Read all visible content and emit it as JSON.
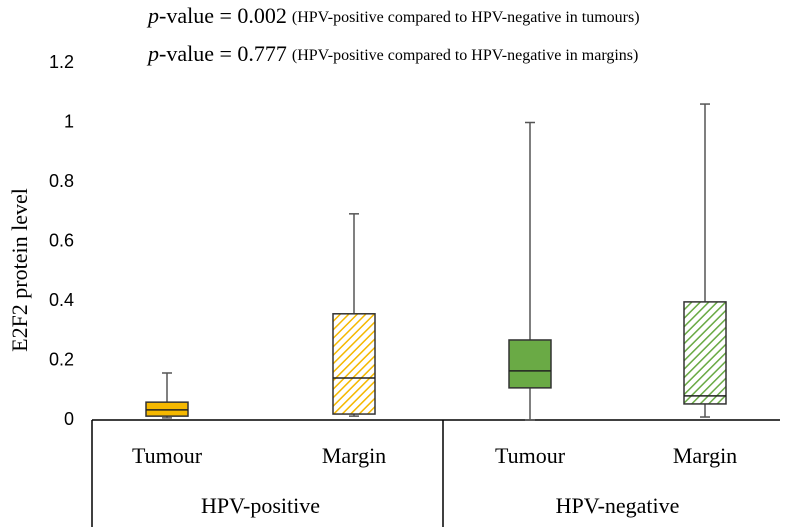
{
  "chart_data": {
    "type": "box",
    "annotations": [
      {
        "symbol": "p",
        "text": "-value = 0.002",
        "detail": "(HPV-positive compared to HPV-negative in tumours)"
      },
      {
        "symbol": "p",
        "text": "-value = 0.777",
        "detail": "(HPV-positive compared to HPV-negative in margins)"
      }
    ],
    "ylabel": "E2F2 protein level",
    "categories": [
      "Tumour",
      "Margin",
      "Tumour",
      "Margin"
    ],
    "groups": [
      "HPV-positive",
      "HPV-negative"
    ],
    "boxes": [
      {
        "color": "#f5b800",
        "hatched": false,
        "min": 0.007,
        "q1": 0.013,
        "median": 0.034,
        "q3": 0.06,
        "max": 0.158
      },
      {
        "color": "#f5b800",
        "hatched": true,
        "min": 0.013,
        "q1": 0.02,
        "median": 0.141,
        "q3": 0.357,
        "max": 0.693
      },
      {
        "color": "#6aaa45",
        "hatched": false,
        "min": 0,
        "q1": 0.108,
        "median": 0.165,
        "q3": 0.269,
        "max": 1.0
      },
      {
        "color": "#6aaa45",
        "hatched": true,
        "min": 0.01,
        "q1": 0.054,
        "median": 0.081,
        "q3": 0.397,
        "max": 1.062
      }
    ],
    "ylim": [
      0,
      1.2
    ],
    "yticks": [
      0,
      0.2,
      0.4,
      0.6,
      0.8,
      1,
      1.2
    ],
    "grid": false
  }
}
